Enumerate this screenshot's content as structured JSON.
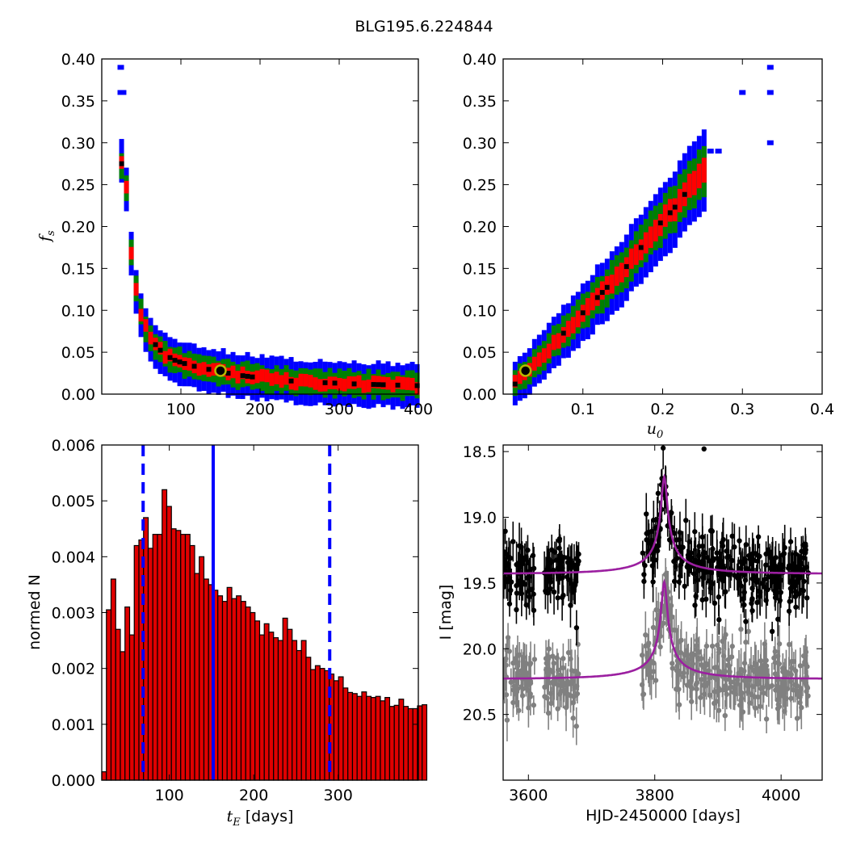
{
  "figure": {
    "title": "BLG195.6.224844"
  },
  "chart_data": [
    {
      "type": "heatmap",
      "panel": "top-left",
      "xlabel": "",
      "ylabel": "f_s",
      "xlim": [
        0,
        400
      ],
      "ylim": [
        0.0,
        0.4
      ],
      "xticks": [
        100,
        200,
        300,
        400
      ],
      "yticks": [
        0.0,
        0.05,
        0.1,
        0.15,
        0.2,
        0.25,
        0.3,
        0.35,
        0.4
      ],
      "best_fit": {
        "x": 150,
        "y": 0.028
      },
      "colors": {
        "outer": "#0000ff",
        "mid": "#008000",
        "inner": "#ff0000",
        "core": "#000000",
        "marker_edge": "#b8b800"
      },
      "track": [
        [
          22,
          0.275
        ],
        [
          26,
          0.26
        ],
        [
          29,
          0.24
        ],
        [
          31,
          0.21
        ],
        [
          33,
          0.185
        ],
        [
          35,
          0.16
        ],
        [
          38,
          0.14
        ],
        [
          41,
          0.12
        ],
        [
          45,
          0.1
        ],
        [
          50,
          0.085
        ],
        [
          56,
          0.072
        ],
        [
          64,
          0.06
        ],
        [
          75,
          0.048
        ],
        [
          90,
          0.04
        ],
        [
          110,
          0.034
        ],
        [
          130,
          0.03
        ],
        [
          150,
          0.026
        ],
        [
          175,
          0.022
        ],
        [
          200,
          0.019
        ],
        [
          230,
          0.016
        ],
        [
          270,
          0.014
        ],
        [
          320,
          0.012
        ],
        [
          360,
          0.011
        ],
        [
          400,
          0.01
        ]
      ],
      "outliers": [
        [
          24,
          0.39
        ],
        [
          24,
          0.36
        ],
        [
          27,
          0.36
        ]
      ]
    },
    {
      "type": "heatmap",
      "panel": "top-right",
      "xlabel": "u_0",
      "ylabel": "",
      "xlim": [
        0,
        0.4
      ],
      "ylim": [
        0.0,
        0.4
      ],
      "xticks": [
        0.1,
        0.2,
        0.3,
        0.4
      ],
      "yticks": [
        0.0,
        0.05,
        0.1,
        0.15,
        0.2,
        0.25,
        0.3,
        0.35,
        0.4
      ],
      "best_fit": {
        "x": 0.028,
        "y": 0.028
      },
      "colors": {
        "outer": "#0000ff",
        "mid": "#008000",
        "inner": "#ff0000",
        "core": "#000000",
        "marker_edge": "#b8b800"
      },
      "track": [
        [
          0.012,
          0.012
        ],
        [
          0.03,
          0.03
        ],
        [
          0.05,
          0.05
        ],
        [
          0.07,
          0.07
        ],
        [
          0.09,
          0.09
        ],
        [
          0.11,
          0.11
        ],
        [
          0.13,
          0.13
        ],
        [
          0.15,
          0.15
        ],
        [
          0.17,
          0.175
        ],
        [
          0.19,
          0.2
        ],
        [
          0.21,
          0.22
        ],
        [
          0.23,
          0.245
        ],
        [
          0.25,
          0.27
        ]
      ],
      "outliers": [
        [
          0.3,
          0.36
        ],
        [
          0.335,
          0.39
        ],
        [
          0.335,
          0.36
        ],
        [
          0.335,
          0.3
        ],
        [
          0.26,
          0.29
        ],
        [
          0.27,
          0.29
        ]
      ]
    },
    {
      "type": "bar",
      "panel": "bottom-left",
      "xlabel": "t_E [days]",
      "ylabel": "normed N",
      "xlim": [
        20,
        395
      ],
      "ylim": [
        0,
        0.006
      ],
      "xticks": [
        100,
        200,
        300
      ],
      "yticks": [
        0.0,
        0.001,
        0.002,
        0.003,
        0.004,
        0.005,
        0.006
      ],
      "bin_start": 20,
      "bin_width": 5.5,
      "values": [
        0.00015,
        0.00305,
        0.0036,
        0.0027,
        0.0023,
        0.0031,
        0.0026,
        0.0042,
        0.0043,
        0.0047,
        0.00415,
        0.0044,
        0.0044,
        0.0052,
        0.0049,
        0.0045,
        0.00447,
        0.0044,
        0.0044,
        0.0042,
        0.0037,
        0.004,
        0.0036,
        0.0035,
        0.0034,
        0.0033,
        0.0032,
        0.00345,
        0.00325,
        0.0033,
        0.0032,
        0.0031,
        0.003,
        0.00285,
        0.0026,
        0.0028,
        0.00265,
        0.00255,
        0.0025,
        0.0029,
        0.0027,
        0.0025,
        0.00232,
        0.0025,
        0.0022,
        0.00198,
        0.00205,
        0.002,
        0.00196,
        0.0019,
        0.00178,
        0.00185,
        0.00165,
        0.00157,
        0.00155,
        0.0015,
        0.00158,
        0.0015,
        0.00148,
        0.0015,
        0.00142,
        0.00148,
        0.00132,
        0.00134,
        0.00145,
        0.00132,
        0.00128,
        0.00128,
        0.00133,
        0.00135
      ],
      "median_line": 152,
      "interval_lines": [
        69,
        290
      ],
      "colors": {
        "bar_fill": "#e00000",
        "bar_edge": "#000000",
        "lines": "#0000ff"
      }
    },
    {
      "type": "scatter",
      "panel": "bottom-right",
      "xlabel": "HJD-2450000 [days]",
      "ylabel": "I [mag]",
      "xlim": [
        3560,
        4065
      ],
      "ylim": [
        21.0,
        18.45
      ],
      "xticks": [
        3600,
        3800,
        4000
      ],
      "yticks": [
        18.5,
        19.0,
        19.5,
        20.0,
        20.5
      ],
      "model": {
        "t0": 3815,
        "tE": 150,
        "u0": 0.028,
        "fs": 0.028,
        "base_mag": 19.43,
        "offset_mag": 20.23,
        "peak_mag": 18.78
      },
      "seasons": [
        [
          3560,
          3610
        ],
        [
          3625,
          3680
        ],
        [
          3780,
          4045
        ]
      ],
      "outlier_points": [
        {
          "x": 3878,
          "y": 18.48
        }
      ],
      "colors": {
        "main_points": "#000000",
        "offset_points": "#808080",
        "model": "#9b1fa0"
      }
    }
  ]
}
